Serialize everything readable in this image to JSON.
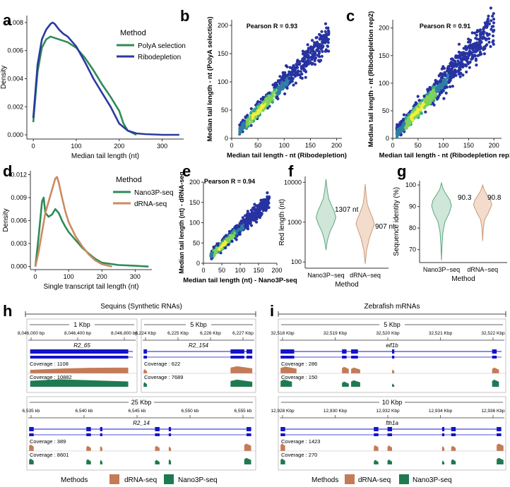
{
  "colors": {
    "green": "#2e8b57",
    "blue": "#2b3a9e",
    "orange": "#cc8a5f",
    "violin_green_fill": "#cfe6d9",
    "violin_green_edge": "#5fa882",
    "violin_orange_fill": "#f3dccb",
    "violin_orange_edge": "#cc9a7a",
    "cov_orange": "#c47b58",
    "cov_green": "#1f7a52",
    "track_blue": "#1414c8"
  },
  "panels": {
    "a": {
      "letter": "a",
      "legend_title": "Method",
      "legend": [
        "PolyA selection",
        "Ribodepletion"
      ]
    },
    "b": {
      "letter": "b",
      "pearson": "Pearson R = 0.93"
    },
    "c": {
      "letter": "c",
      "pearson": "Pearson R = 0.91"
    },
    "d": {
      "letter": "d",
      "legend_title": "Method",
      "legend": [
        "Nano3P-seq",
        "dRNA-seq"
      ]
    },
    "e": {
      "letter": "e",
      "pearson": "Pearson R = 0.94"
    },
    "f": {
      "letter": "f",
      "labels": [
        "1307 nt",
        "907 nt"
      ]
    },
    "g": {
      "letter": "g",
      "labels": [
        "90.3",
        "90.8"
      ]
    },
    "h": {
      "letter": "h"
    },
    "i": {
      "letter": "i"
    }
  },
  "chart_data": [
    {
      "id": "a",
      "type": "line",
      "xlabel": "Median tail length (nt)",
      "ylabel": "Density",
      "xlim": [
        -15,
        350
      ],
      "ylim": [
        -0.0003,
        0.0085
      ],
      "xticks": [
        "0",
        "100",
        "200",
        "300"
      ],
      "xtick_values": [
        0,
        100,
        200,
        300
      ],
      "yticks": [
        "0.000",
        "0.002",
        "0.004",
        "0.006",
        "0.008"
      ],
      "ytick_values": [
        0,
        0.002,
        0.004,
        0.006,
        0.008
      ],
      "series": [
        {
          "name": "PolyA selection",
          "color": "#2e8b57",
          "x": [
            0,
            10,
            20,
            30,
            40,
            50,
            60,
            80,
            100,
            120,
            140,
            160,
            180,
            200,
            210,
            220,
            240
          ],
          "y": [
            0.0009,
            0.0045,
            0.0062,
            0.0068,
            0.007,
            0.0069,
            0.0068,
            0.0066,
            0.0062,
            0.0055,
            0.0046,
            0.0036,
            0.0027,
            0.0017,
            0.0008,
            0.0003,
            0.0
          ]
        },
        {
          "name": "Ribodepletion",
          "color": "#2b3a9e",
          "x": [
            0,
            10,
            20,
            30,
            40,
            45,
            50,
            60,
            70,
            80,
            100,
            120,
            140,
            160,
            180,
            200,
            220,
            240,
            260,
            300,
            340
          ],
          "y": [
            0.0012,
            0.005,
            0.0068,
            0.0075,
            0.0079,
            0.008,
            0.0079,
            0.0075,
            0.0072,
            0.007,
            0.0063,
            0.0052,
            0.004,
            0.003,
            0.002,
            0.0008,
            0.0003,
            0.0001,
            5e-05,
            0.0,
            0.0
          ]
        }
      ]
    },
    {
      "id": "b",
      "type": "scatter",
      "xlabel": "Median tail length - nt (Ribodepletion)",
      "ylabel": "Median tail length - nt (PolyA selection)",
      "xlim": [
        0,
        210
      ],
      "ylim": [
        0,
        210
      ],
      "xticks": [
        "0",
        "50",
        "100",
        "150",
        "200"
      ],
      "xtick_values": [
        0,
        50,
        100,
        150,
        200
      ],
      "yticks": [
        "0",
        "50",
        "100",
        "150",
        "200"
      ],
      "ytick_values": [
        0,
        50,
        100,
        150,
        200
      ],
      "pearson_r": 0.93,
      "seed": 11,
      "n": 650,
      "x_range": [
        15,
        185
      ],
      "slope": 0.95,
      "spread": 10
    },
    {
      "id": "c",
      "type": "scatter",
      "xlabel": "Median tail length - nt (Ribodepletion rep1)",
      "ylabel": "Median tail length - nt (Ribodepletion rep2)",
      "xlim": [
        0,
        215
      ],
      "ylim": [
        0,
        215
      ],
      "xticks": [
        "0",
        "50",
        "100",
        "150",
        "200"
      ],
      "xtick_values": [
        0,
        50,
        100,
        150,
        200
      ],
      "yticks": [
        "0",
        "50",
        "100",
        "150",
        "200"
      ],
      "ytick_values": [
        0,
        50,
        100,
        150,
        200
      ],
      "pearson_r": 0.91,
      "seed": 23,
      "n": 800,
      "x_range": [
        8,
        200
      ],
      "slope": 1.0,
      "spread": 12
    },
    {
      "id": "d",
      "type": "line",
      "xlabel": "Single transcript tail length (nt)",
      "ylabel": "Density",
      "xlim": [
        -15,
        350
      ],
      "ylim": [
        -0.0004,
        0.0125
      ],
      "xticks": [
        "0",
        "100",
        "200",
        "300"
      ],
      "xtick_values": [
        0,
        100,
        200,
        300
      ],
      "yticks": [
        "0.000",
        "0.003",
        "0.006",
        "0.009",
        "0.012"
      ],
      "ytick_values": [
        0,
        0.003,
        0.006,
        0.009,
        0.012
      ],
      "series": [
        {
          "name": "Nano3P-seq",
          "color": "#2e8b57",
          "x": [
            0,
            10,
            20,
            25,
            30,
            40,
            50,
            60,
            70,
            80,
            90,
            100,
            120,
            140,
            160,
            180,
            200,
            250,
            300,
            340
          ],
          "y": [
            0.0,
            0.004,
            0.0085,
            0.009,
            0.007,
            0.0065,
            0.0068,
            0.0075,
            0.007,
            0.006,
            0.0052,
            0.0045,
            0.0035,
            0.0025,
            0.0017,
            0.001,
            0.0005,
            0.0002,
            0.0001,
            0.0
          ]
        },
        {
          "name": "dRNA-seq",
          "color": "#cc8a5f",
          "x": [
            0,
            10,
            20,
            30,
            40,
            50,
            60,
            65,
            70,
            80,
            90,
            100,
            120,
            140,
            160,
            180,
            200,
            230
          ],
          "y": [
            0.0,
            0.002,
            0.0045,
            0.007,
            0.0085,
            0.01,
            0.0115,
            0.0117,
            0.011,
            0.009,
            0.0072,
            0.0058,
            0.004,
            0.0027,
            0.0016,
            0.0008,
            0.0003,
            0.0
          ]
        }
      ]
    },
    {
      "id": "e",
      "type": "scatter",
      "xlabel": "Median tail length (nt) - Nano3P-seq",
      "ylabel": "Median tail length (nt) - dRNA-seq",
      "xlim": [
        0,
        200
      ],
      "ylim": [
        0,
        200
      ],
      "xticks": [
        "0",
        "50",
        "100",
        "150",
        "200"
      ],
      "xtick_values": [
        0,
        50,
        100,
        150,
        200
      ],
      "yticks": [
        "0",
        "50",
        "100",
        "150",
        "200"
      ],
      "ytick_values": [
        0,
        50,
        100,
        150,
        200
      ],
      "pearson_r": 0.94,
      "seed": 37,
      "n": 600,
      "x_range": [
        20,
        180
      ],
      "slope": 0.85,
      "spread": 9
    },
    {
      "id": "f",
      "type": "violin",
      "xlabel": "Method",
      "ylabel": "Red length (nt)",
      "categories": [
        "Nano3P−seq",
        "dRNA−seq"
      ],
      "yticks": [
        "100",
        "1000",
        "10000"
      ],
      "ytick_values": [
        100,
        1000,
        10000
      ],
      "medians": [
        1307,
        907
      ],
      "scale": "log"
    },
    {
      "id": "g",
      "type": "violin",
      "xlabel": "Method",
      "ylabel": "Sequence identity (%)",
      "categories": [
        "Nano3P−seq",
        "dRNA−seq"
      ],
      "yticks": [
        "70",
        "80",
        "90",
        "100"
      ],
      "ytick_values": [
        70,
        80,
        90,
        100
      ],
      "medians": [
        90.3,
        90.8
      ],
      "scale": "linear"
    }
  ],
  "tracks": {
    "h": {
      "title": "Sequins (Synthetic RNAs)",
      "subpanels": [
        {
          "scale_label": "1 Kbp",
          "coords": [
            "8,046,000 bp",
            "8,046,400 bp",
            "8,046,800 bp"
          ],
          "gene": "R2_65",
          "cov_orange": "Coverage : 1108",
          "cov_green": "Coverage : 10882"
        },
        {
          "scale_label": "5 Kbp",
          "coords": [
            "6,224 Kbp",
            "6,225 Kbp",
            "6,226 Kbp",
            "6,227 Kbp"
          ],
          "gene": "R2_154",
          "cov_orange": "Coverage : 622",
          "cov_green": "Coverage : 7689"
        },
        {
          "scale_label": "25 Kbp",
          "coords": [
            "6,535 kb",
            "6,540 kb",
            "6,545 kb",
            "6,550 kb",
            "6,555 kb"
          ],
          "gene": "R2_14",
          "cov_orange": "Coverage : 389",
          "cov_green": "Coverage : 8601"
        }
      ],
      "legend_title": "Methods",
      "legend": [
        "dRNA-seq",
        "Nano3P-seq"
      ]
    },
    "i": {
      "title": "Zebrafish mRNAs",
      "subpanels": [
        {
          "scale_label": "5 Kbp",
          "coords": [
            "32,518 Kbp",
            "32,519 Kbp",
            "32,520 Kbp",
            "32,521 Kbp",
            "32,522 Kbp"
          ],
          "gene": "eif1b",
          "cov_orange": "Coverage : 286",
          "cov_green": "Coverage : 150"
        },
        {
          "scale_label": "10 Kbp",
          "coords": [
            "12,928 Kbp",
            "12,930 Kbp",
            "12,932 Kbp",
            "12,934 Kbp",
            "12,936 Kbp"
          ],
          "gene": "fth1a",
          "cov_orange": "Coverage : 1423",
          "cov_green": "Coverage : 270"
        }
      ],
      "legend_title": "Methods",
      "legend": [
        "dRNA-seq",
        "Nano3P-seq"
      ]
    }
  }
}
